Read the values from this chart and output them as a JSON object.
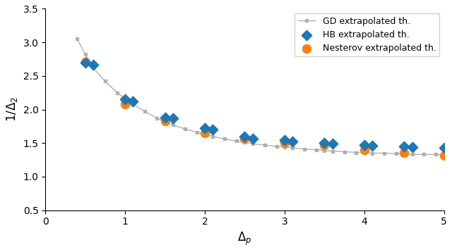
{
  "gd_x": [
    0.4,
    0.5,
    0.6,
    0.75,
    0.9,
    1.0,
    1.1,
    1.25,
    1.4,
    1.5,
    1.6,
    1.75,
    1.9,
    2.0,
    2.1,
    2.25,
    2.4,
    2.5,
    2.6,
    2.75,
    2.9,
    3.0,
    3.1,
    3.25,
    3.4,
    3.5,
    3.6,
    3.75,
    3.9,
    4.0,
    4.1,
    4.25,
    4.4,
    4.5,
    4.6,
    4.75,
    4.9,
    5.0
  ],
  "gd_y": [
    3.05,
    2.82,
    2.62,
    2.42,
    2.25,
    2.16,
    2.08,
    1.97,
    1.87,
    1.82,
    1.77,
    1.71,
    1.66,
    1.63,
    1.6,
    1.56,
    1.53,
    1.51,
    1.49,
    1.47,
    1.45,
    1.44,
    1.43,
    1.41,
    1.4,
    1.39,
    1.38,
    1.37,
    1.36,
    1.36,
    1.35,
    1.35,
    1.34,
    1.34,
    1.33,
    1.33,
    1.33,
    1.32
  ],
  "hb_x": [
    0.5,
    0.6,
    1.0,
    1.1,
    1.5,
    1.6,
    2.0,
    2.1,
    2.5,
    2.6,
    3.0,
    3.1,
    3.5,
    3.6,
    4.0,
    4.1,
    4.5,
    4.6,
    5.0
  ],
  "hb_y": [
    2.7,
    2.67,
    2.15,
    2.12,
    1.88,
    1.87,
    1.72,
    1.7,
    1.6,
    1.57,
    1.54,
    1.52,
    1.5,
    1.49,
    1.47,
    1.46,
    1.45,
    1.44,
    1.43
  ],
  "nesterov_x": [
    0.5,
    1.0,
    1.5,
    2.0,
    2.5,
    3.0,
    3.5,
    4.0,
    4.5,
    5.0
  ],
  "nesterov_y": [
    2.71,
    2.08,
    1.83,
    1.65,
    1.57,
    1.5,
    1.47,
    1.4,
    1.36,
    1.31
  ],
  "gd_color": "#b0b0b0",
  "hb_color": "#1f77b4",
  "nesterov_color": "#ff7f0e",
  "xlabel": "$\\Delta_p$",
  "ylabel": "$1/\\Delta_2$",
  "xlim": [
    0,
    5
  ],
  "ylim": [
    0.5,
    3.5
  ],
  "xticks": [
    0,
    1,
    2,
    3,
    4,
    5
  ],
  "yticks": [
    0.5,
    1.0,
    1.5,
    2.0,
    2.5,
    3.0,
    3.5
  ],
  "legend_labels": [
    "GD extrapolated th.",
    "HB extrapolated th.",
    "Nesterov extrapolated th."
  ]
}
